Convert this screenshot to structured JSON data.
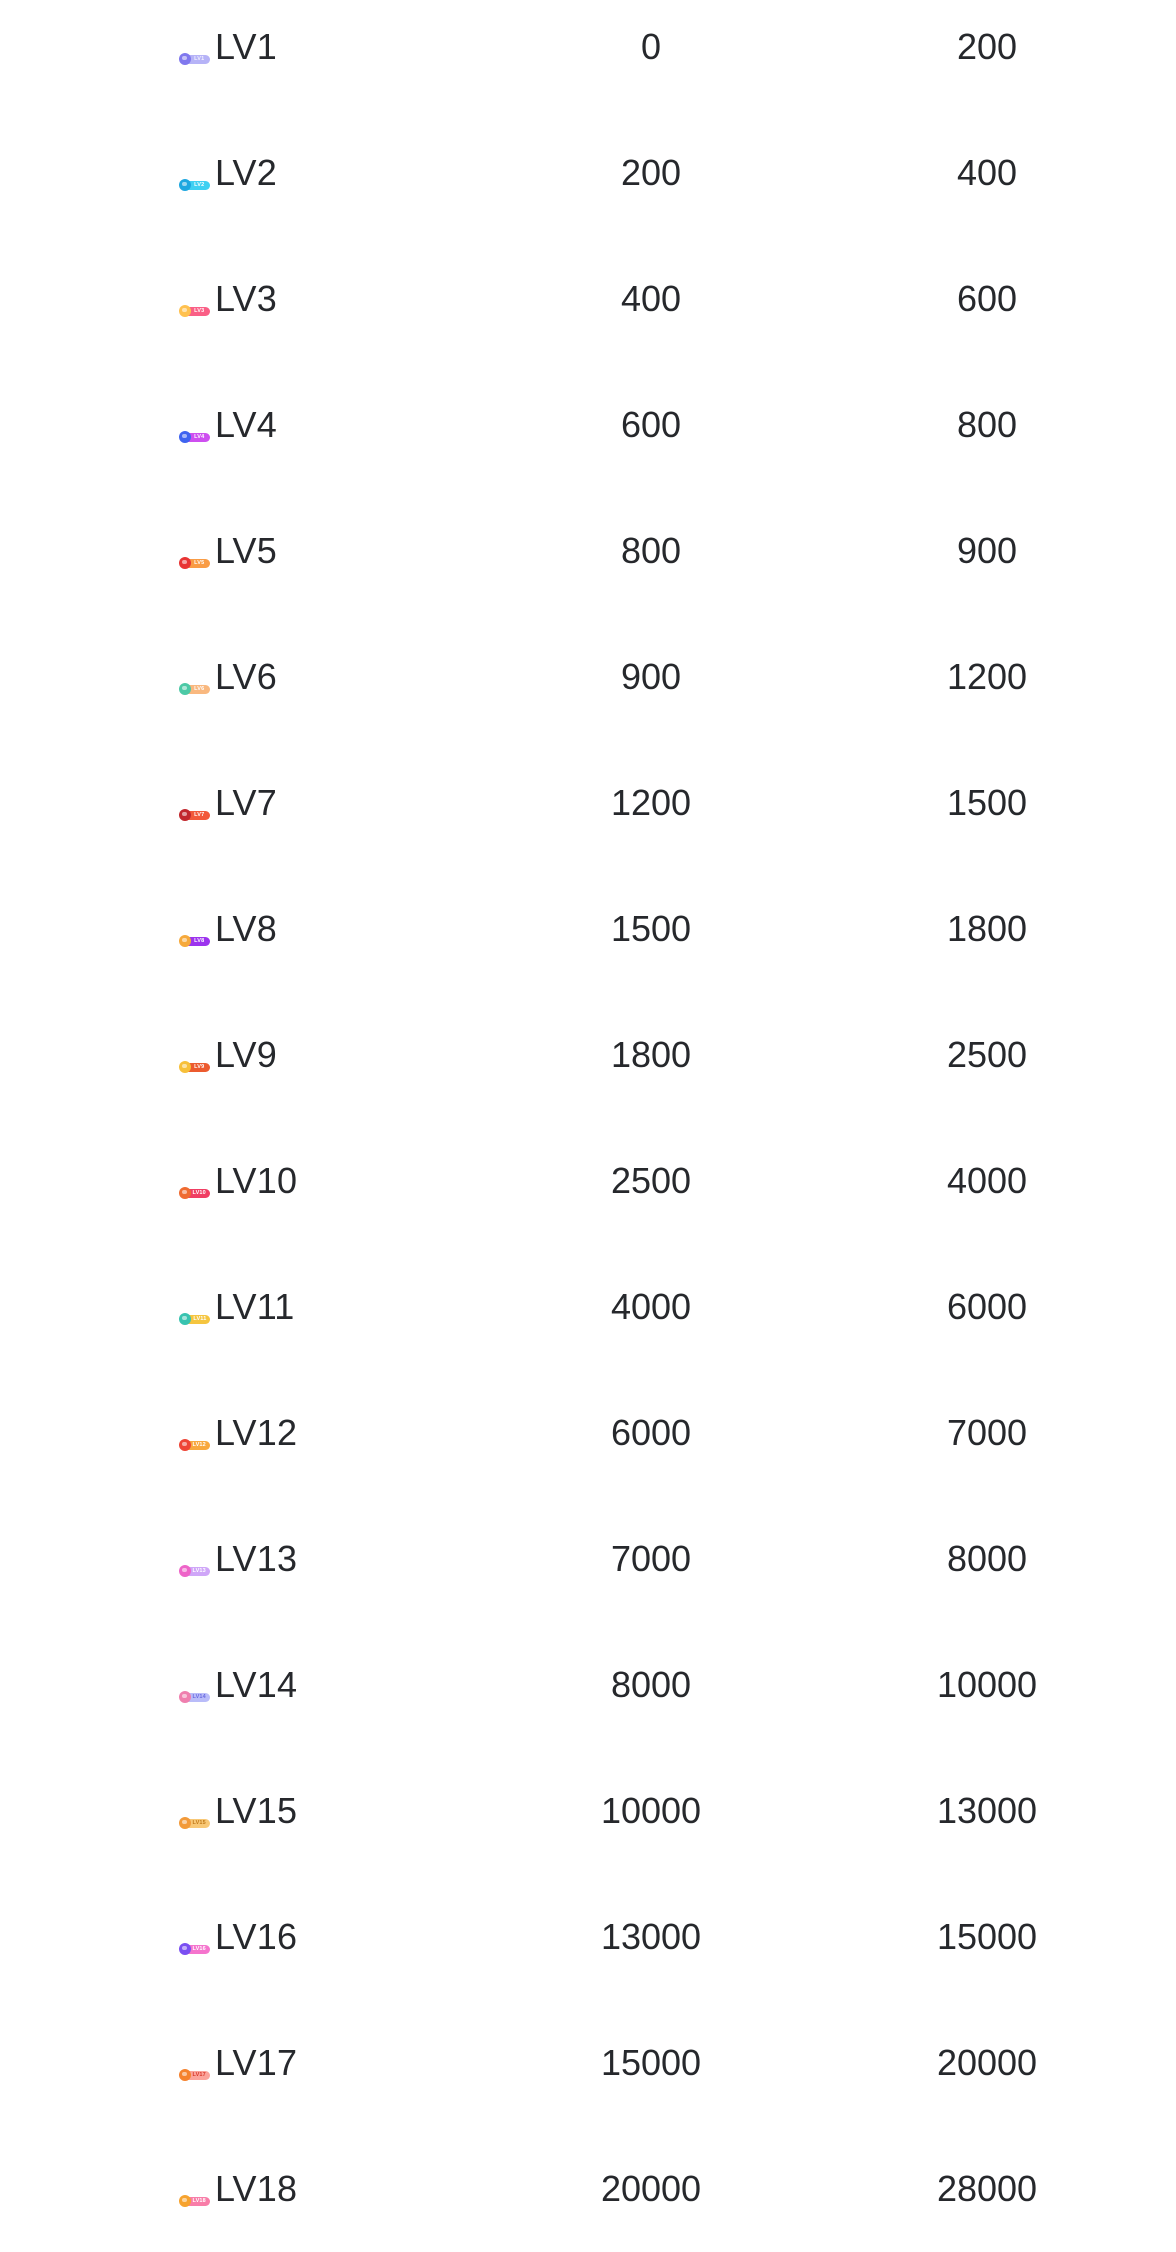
{
  "page": {
    "background_color": "#ffffff",
    "text_color": "#26282c"
  },
  "table": {
    "rows": [
      {
        "level": "LV1",
        "min": "0",
        "max": "200",
        "badge": {
          "label": "LV1",
          "dot_color": "#8078ee",
          "pill_color": "#b6b3f7",
          "text_color": "#f2f1ff"
        }
      },
      {
        "level": "LV2",
        "min": "200",
        "max": "400",
        "badge": {
          "label": "LV2",
          "dot_color": "#1ea7e0",
          "pill_color": "#3fd0f2",
          "text_color": "#ffffff"
        }
      },
      {
        "level": "LV3",
        "min": "400",
        "max": "600",
        "badge": {
          "label": "LV3",
          "dot_color": "#ffc14f",
          "pill_color": "#fa5f86",
          "text_color": "#ffffff"
        }
      },
      {
        "level": "LV4",
        "min": "600",
        "max": "800",
        "badge": {
          "label": "LV4",
          "dot_color": "#3f64f0",
          "pill_color": "#ce4ff0",
          "text_color": "#ffffff"
        }
      },
      {
        "level": "LV5",
        "min": "800",
        "max": "900",
        "badge": {
          "label": "LV5",
          "dot_color": "#e83434",
          "pill_color": "#f99c45",
          "text_color": "#ffffff"
        }
      },
      {
        "level": "LV6",
        "min": "900",
        "max": "1200",
        "badge": {
          "label": "LV6",
          "dot_color": "#4cc9a6",
          "pill_color": "#f9b87f",
          "text_color": "#ffffff"
        }
      },
      {
        "level": "LV7",
        "min": "1200",
        "max": "1500",
        "badge": {
          "label": "LV7",
          "dot_color": "#c1272d",
          "pill_color": "#f2593a",
          "text_color": "#ffffff"
        }
      },
      {
        "level": "LV8",
        "min": "1500",
        "max": "1800",
        "badge": {
          "label": "LV8",
          "dot_color": "#f6a93b",
          "pill_color": "#9c33ee",
          "text_color": "#ffffff"
        }
      },
      {
        "level": "LV9",
        "min": "1800",
        "max": "2500",
        "badge": {
          "label": "LV9",
          "dot_color": "#f7c03a",
          "pill_color": "#ec5b2f",
          "text_color": "#ffffff"
        }
      },
      {
        "level": "LV10",
        "min": "2500",
        "max": "4000",
        "badge": {
          "label": "LV10",
          "dot_color": "#ef6b31",
          "pill_color": "#f03e63",
          "text_color": "#ffffff"
        }
      },
      {
        "level": "LV11",
        "min": "4000",
        "max": "6000",
        "badge": {
          "label": "LV11",
          "dot_color": "#38c3b0",
          "pill_color": "#f5c53f",
          "text_color": "#ffffff"
        }
      },
      {
        "level": "LV12",
        "min": "6000",
        "max": "7000",
        "badge": {
          "label": "LV12",
          "dot_color": "#ee4536",
          "pill_color": "#f8a83f",
          "text_color": "#ffffff"
        }
      },
      {
        "level": "LV13",
        "min": "7000",
        "max": "8000",
        "badge": {
          "label": "LV13",
          "dot_color": "#ee64c8",
          "pill_color": "#cfa6f8",
          "text_color": "#ffffff"
        }
      },
      {
        "level": "LV14",
        "min": "8000",
        "max": "10000",
        "badge": {
          "label": "LV14",
          "dot_color": "#ef7fae",
          "pill_color": "#b9bcf9",
          "text_color": "#6a6ae0"
        }
      },
      {
        "level": "LV15",
        "min": "10000",
        "max": "13000",
        "badge": {
          "label": "LV15",
          "dot_color": "#f29a3a",
          "pill_color": "#f8c876",
          "text_color": "#c07818"
        }
      },
      {
        "level": "LV16",
        "min": "13000",
        "max": "15000",
        "badge": {
          "label": "LV16",
          "dot_color": "#7a4ff2",
          "pill_color": "#f574cd",
          "text_color": "#ffffff"
        }
      },
      {
        "level": "LV17",
        "min": "15000",
        "max": "20000",
        "badge": {
          "label": "LV17",
          "dot_color": "#f5822e",
          "pill_color": "#fba49b",
          "text_color": "#d8372a"
        }
      },
      {
        "level": "LV18",
        "min": "20000",
        "max": "28000",
        "badge": {
          "label": "LV18",
          "dot_color": "#f6a32f",
          "pill_color": "#f87da8",
          "text_color": "#ffffff"
        }
      }
    ]
  }
}
